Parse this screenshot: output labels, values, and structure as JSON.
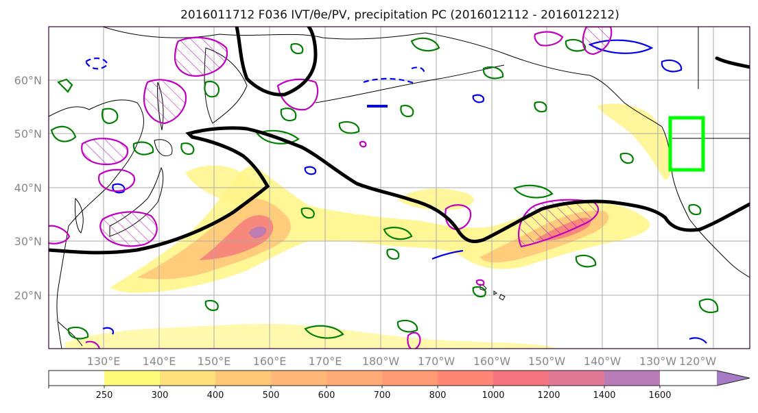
{
  "title": "2016011712 F036 IVT/θe/PV, precipitation PC (2016012112 - 2016012212)",
  "lat_labels": [
    "60°N",
    "50°N",
    "40°N",
    "30°N",
    "20°N"
  ],
  "lon_labels": [
    "130°E",
    "140°E",
    "150°E",
    "160°E",
    "170°E",
    "180°W",
    "170°W",
    "160°W",
    "150°W",
    "140°W",
    "130°W",
    "120°W"
  ],
  "colorbar": {
    "ticks": [
      "250",
      "300",
      "400",
      "500",
      "600",
      "700",
      "800",
      "1000",
      "1200",
      "1400",
      "1600"
    ],
    "colors": [
      "#fffb7a",
      "#ffe07a",
      "#ffc878",
      "#ffb878",
      "#ffab78",
      "#ff9a74",
      "#ff8674",
      "#f57482",
      "#e07896",
      "#b87cb8",
      "#a47cc4"
    ]
  },
  "colors": {
    "ivt_fill": "#fff27a",
    "ivt_mid": "#ffb27a",
    "ivt_core": "#f47c7c",
    "theta_e": "#000000",
    "pv_positive": "#008000",
    "pv_negative": "#0000ee",
    "precip_pc": "#c000c0",
    "target_box": "#00ff00",
    "coast": "#000000",
    "grid": "#aaaaaa"
  }
}
